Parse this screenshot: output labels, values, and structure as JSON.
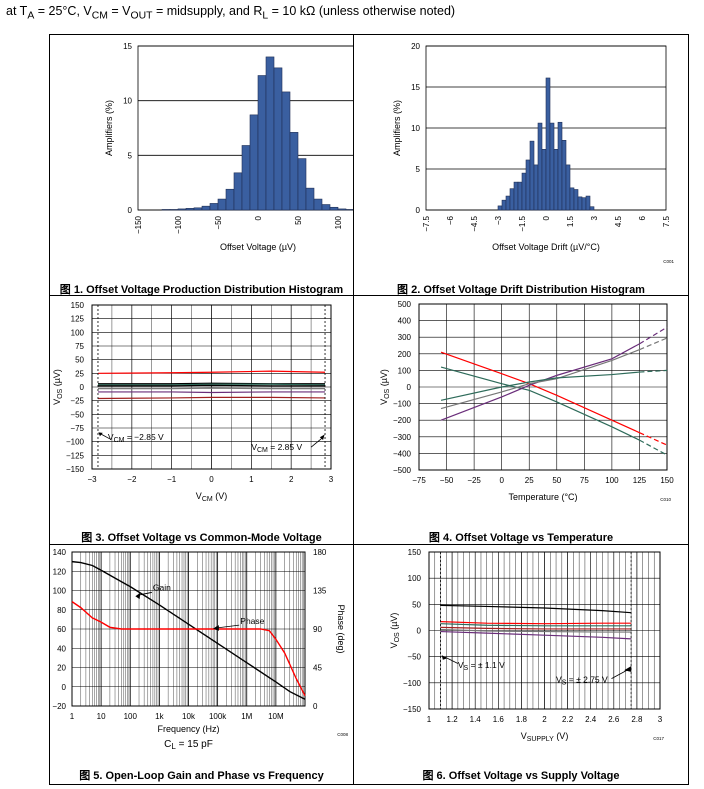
{
  "header": {
    "text_html": "at T<sub>A</sub> = 25°C, V<sub>CM</sub> = V<sub>OUT</sub> = midsupply, and R<sub>L</sub> = 10 kΩ (unless otherwise noted)"
  },
  "colors": {
    "bar_fill": "#3a5fa0",
    "bar_stroke": "#1f2f55",
    "red": "#ff0000",
    "dark_red": "#a02020",
    "green": "#2e6b5a",
    "purple": "#6a2d7a",
    "gray": "#777777",
    "black": "#000000"
  },
  "chart_data": [
    {
      "id": "fig1",
      "type": "bar",
      "caption_prefix": "图 1.",
      "caption": "Offset Voltage Production Distribution Histogram",
      "xlabel": "Offset Voltage (µV)",
      "ylabel": "Amplifiers (%)",
      "code": "C002",
      "xlim": [
        -150,
        150
      ],
      "ylim": [
        0,
        15
      ],
      "xticks": [
        -150,
        -100,
        -50,
        0,
        50,
        100,
        150
      ],
      "yticks": [
        0,
        5,
        10,
        15
      ],
      "bin_width": 10,
      "bin_left": [
        -120,
        -110,
        -100,
        -90,
        -80,
        -70,
        -60,
        -50,
        -40,
        -30,
        -20,
        -10,
        0,
        10,
        20,
        30,
        40,
        50,
        60,
        70,
        80,
        90,
        100,
        110
      ],
      "values": [
        0.05,
        0.05,
        0.1,
        0.15,
        0.2,
        0.35,
        0.6,
        1.0,
        1.9,
        3.4,
        5.9,
        8.7,
        12.3,
        14.0,
        13.0,
        10.8,
        7.1,
        4.7,
        2.0,
        1.0,
        0.5,
        0.25,
        0.1,
        0.05
      ]
    },
    {
      "id": "fig2",
      "type": "bar",
      "caption_prefix": "图 2.",
      "caption": "Offset Voltage Drift Distribution Histogram",
      "xlabel": "Offset Voltage Drift (µV/°C)",
      "ylabel": "Amplifiers (%)",
      "code": "C001",
      "xlim": [
        -7.5,
        7.5
      ],
      "ylim": [
        0,
        20
      ],
      "xticks": [
        -7.5,
        -6,
        -4.5,
        -3,
        -1.5,
        0,
        1.5,
        3,
        4.5,
        6,
        7.5
      ],
      "yticks": [
        0,
        5,
        10,
        15,
        20
      ],
      "bin_width": 0.25,
      "bin_left": [
        -3.0,
        -2.75,
        -2.5,
        -2.25,
        -2.0,
        -1.75,
        -1.5,
        -1.25,
        -1.0,
        -0.75,
        -0.5,
        -0.25,
        0.0,
        0.25,
        0.5,
        0.75,
        1.0,
        1.25,
        1.5,
        1.75,
        2.0,
        2.25,
        2.5,
        2.75
      ],
      "values": [
        0.5,
        1.2,
        1.7,
        2.6,
        3.4,
        3.4,
        4.5,
        6.1,
        8.4,
        5.5,
        10.6,
        7.4,
        16.1,
        10.6,
        7.4,
        10.7,
        8.5,
        5.5,
        2.7,
        2.5,
        1.6,
        1.5,
        1.7,
        0.4
      ]
    },
    {
      "id": "fig3",
      "type": "line",
      "caption_prefix": "图 3.",
      "caption": "Offset Voltage vs Common-Mode Voltage",
      "xlabel": "V<tspan font-size='7' dy='2'>CM</tspan><tspan dy='-2'> (V)</tspan>",
      "ylabel": "V<tspan font-size='7' dy='2'>OS</tspan><tspan dy='-2'> (µV)</tspan>",
      "xlim": [
        -3,
        3
      ],
      "ylim": [
        -150,
        150
      ],
      "xticks": [
        -3,
        -2,
        -1,
        0,
        1,
        2,
        3
      ],
      "yticks": [
        -150,
        -125,
        -100,
        -75,
        -50,
        -25,
        0,
        25,
        50,
        75,
        100,
        125,
        150
      ],
      "annot_left": "V<tspan font-size='7' dy='2'>CM</tspan><tspan dy='-2'> = −2.85 V</tspan>",
      "annot_right": "V<tspan font-size='7' dy='2'>CM</tspan><tspan dy='-2'> = 2.85 V</tspan>",
      "series": [
        {
          "color": "red",
          "x": [
            -2.85,
            -1,
            0,
            1.5,
            2.85
          ],
          "y": [
            25,
            26,
            27,
            29,
            27
          ]
        },
        {
          "color": "black",
          "x": [
            -2.85,
            -1,
            0,
            1.5,
            2.85
          ],
          "y": [
            6,
            6,
            7,
            6,
            6
          ]
        },
        {
          "color": "green",
          "x": [
            -2.85,
            -1,
            0,
            1.5,
            2.85
          ],
          "y": [
            4,
            4,
            5,
            5,
            4
          ]
        },
        {
          "color": "black",
          "x": [
            -2.85,
            -1,
            0,
            1.5,
            2.85
          ],
          "y": [
            2,
            2,
            3,
            2,
            2
          ]
        },
        {
          "color": "gray",
          "x": [
            -2.85,
            -1,
            0,
            1.5,
            2.85
          ],
          "y": [
            -3,
            -3,
            -2,
            -3,
            -3
          ]
        },
        {
          "color": "purple",
          "x": [
            -2.85,
            -1,
            0,
            1.5,
            2.85
          ],
          "y": [
            -9,
            -9,
            -10,
            -9,
            -9
          ]
        },
        {
          "color": "dark_red",
          "x": [
            -2.85,
            -1,
            0,
            1.5,
            2.85
          ],
          "y": [
            -21,
            -20,
            -19,
            -19,
            -20
          ]
        }
      ]
    },
    {
      "id": "fig4",
      "type": "line",
      "caption_prefix": "图 4.",
      "caption": "Offset Voltage vs Temperature",
      "xlabel": "Temperature (°C)",
      "ylabel": "V<tspan font-size='7' dy='2'>OS</tspan><tspan dy='-2'> (µV)</tspan>",
      "code": "C010",
      "xlim": [
        -75,
        150
      ],
      "ylim": [
        -500,
        500
      ],
      "xticks": [
        -75,
        -50,
        -25,
        0,
        25,
        50,
        75,
        100,
        125,
        150
      ],
      "yticks": [
        -500,
        -400,
        -300,
        -200,
        -100,
        0,
        100,
        200,
        300,
        400,
        500
      ],
      "series": [
        {
          "color": "red",
          "x": [
            -55,
            0,
            25,
            50,
            100,
            125
          ],
          "y": [
            210,
            80,
            20,
            -50,
            -200,
            -275
          ],
          "dash_x": [
            125,
            150
          ],
          "dash_y": [
            -275,
            -350
          ]
        },
        {
          "color": "green",
          "x": [
            -55,
            0,
            25,
            50,
            100,
            125
          ],
          "y": [
            120,
            20,
            -20,
            -90,
            -240,
            -320
          ],
          "dash_x": [
            125,
            150
          ],
          "dash_y": [
            -320,
            -410
          ]
        },
        {
          "color": "purple",
          "x": [
            -55,
            0,
            25,
            50,
            100,
            125
          ],
          "y": [
            -200,
            -60,
            10,
            70,
            170,
            260
          ],
          "dash_x": [
            125,
            150
          ],
          "dash_y": [
            260,
            360
          ]
        },
        {
          "color": "gray",
          "x": [
            -55,
            0,
            25,
            50,
            100,
            125
          ],
          "y": [
            -130,
            -30,
            20,
            50,
            160,
            225
          ],
          "dash_x": [
            125,
            150
          ],
          "dash_y": [
            225,
            295
          ]
        },
        {
          "color": "green",
          "x": [
            -55,
            0,
            25,
            50,
            100,
            125
          ],
          "y": [
            -80,
            0,
            30,
            55,
            75,
            90
          ],
          "dash_x": [
            125,
            150
          ],
          "dash_y": [
            90,
            100
          ]
        }
      ]
    },
    {
      "id": "fig5",
      "type": "line",
      "caption_prefix": "图 5.",
      "caption": "Open-Loop Gain and Phase vs Frequency",
      "xlabel": "Frequency (Hz)",
      "ylabel": "Gain (dB)",
      "y2label": "Phase (deg)",
      "subtitle": "C<tspan font-size='8' dy='2'>L</tspan><tspan dy='-2'> = 15 pF</tspan>",
      "code": "C008",
      "xscale": "log",
      "xlim": [
        1,
        100000000
      ],
      "ylim": [
        -20,
        140
      ],
      "y2lim": [
        0,
        180
      ],
      "xticks": [
        1,
        10,
        100,
        1000,
        10000,
        100000,
        1000000,
        10000000
      ],
      "xticklabels": [
        "1",
        "10",
        "100",
        "1k",
        "10k",
        "100k",
        "1M",
        "10M"
      ],
      "yticks": [
        -20,
        0,
        20,
        40,
        60,
        80,
        100,
        120,
        140
      ],
      "y2ticks": [
        0,
        45,
        90,
        135,
        180
      ],
      "series": [
        {
          "name": "Gain",
          "color": "black",
          "axis": "left",
          "x": [
            1,
            2,
            5,
            10,
            100,
            1000,
            10000,
            100000,
            1000000,
            10000000,
            30000000,
            100000000
          ],
          "y": [
            130,
            129,
            126,
            121,
            104,
            85,
            65,
            45,
            25,
            5,
            -5,
            -13
          ]
        },
        {
          "name": "Phase",
          "color": "red",
          "axis": "right",
          "x": [
            1,
            2,
            5,
            10,
            20,
            50,
            100,
            1000,
            10000,
            100000,
            1000000,
            3000000,
            6000000,
            10000000,
            20000000,
            50000000,
            100000000
          ],
          "y": [
            122,
            115,
            103,
            98,
            92,
            90,
            90,
            90,
            90,
            90,
            90,
            90,
            88,
            78,
            62,
            32,
            12
          ]
        }
      ]
    },
    {
      "id": "fig6",
      "type": "line",
      "caption_prefix": "图 6.",
      "caption": "Offset Voltage vs Supply Voltage",
      "xlabel": "V<tspan font-size='7' dy='2'>SUPPLY</tspan><tspan dy='-2'> (V)</tspan>",
      "ylabel": "V<tspan font-size='7' dy='2'>OS</tspan><tspan dy='-2'> (µV)</tspan>",
      "code": "C017",
      "xlim": [
        1.0,
        3.0
      ],
      "ylim": [
        -150,
        150
      ],
      "xticks": [
        1.0,
        1.2,
        1.4,
        1.6,
        1.8,
        2.0,
        2.2,
        2.4,
        2.6,
        2.8,
        3.0
      ],
      "yticks": [
        -150,
        -100,
        -50,
        0,
        50,
        100,
        150
      ],
      "annot_left": "V<tspan font-size='7' dy='2'>S</tspan><tspan dy='-2'> = ± 1.1 V</tspan>",
      "annot_right": "V<tspan font-size='7' dy='2'>S</tspan><tspan dy='-2'> = ± 2.75 V</tspan>",
      "series": [
        {
          "color": "black",
          "x": [
            1.1,
            1.5,
            2.0,
            2.5,
            2.75
          ],
          "y": [
            48,
            46,
            43,
            38,
            34
          ]
        },
        {
          "color": "red",
          "x": [
            1.1,
            1.5,
            2.0,
            2.5,
            2.75
          ],
          "y": [
            17,
            14,
            13,
            14,
            14
          ]
        },
        {
          "color": "green",
          "x": [
            1.1,
            1.5,
            2.0,
            2.5,
            2.75
          ],
          "y": [
            13,
            10,
            9,
            9,
            9
          ]
        },
        {
          "color": "dark_red",
          "x": [
            1.1,
            1.5,
            2.0,
            2.5,
            2.75
          ],
          "y": [
            6,
            4,
            3,
            3,
            3
          ]
        },
        {
          "color": "gray",
          "x": [
            1.1,
            1.5,
            2.0,
            2.5,
            2.75
          ],
          "y": [
            2,
            -1,
            -2,
            -3,
            -3
          ]
        },
        {
          "color": "purple",
          "x": [
            1.1,
            1.5,
            2.0,
            2.5,
            2.75
          ],
          "y": [
            -2,
            -5,
            -9,
            -13,
            -16
          ]
        }
      ]
    }
  ]
}
